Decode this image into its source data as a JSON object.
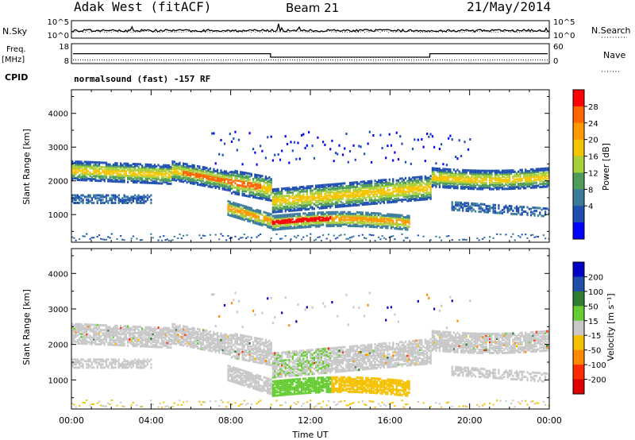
{
  "header": {
    "station": "Adak West (fitACF)",
    "beam": "Beam 21",
    "date": "21/May/2014"
  },
  "side_labels": {
    "nsky": "N.Sky",
    "freq_top": "Freq.",
    "freq_unit": "[MHz]",
    "cpid": "CPID",
    "nsearch": "N.Search",
    "nave": "Nave"
  },
  "cpid_text": "normalsound (fast) -157 RF",
  "chart_data": [
    {
      "type": "line",
      "panel": "noise",
      "y_ticks_left": [
        "10^5",
        "10^0"
      ],
      "y_ticks_right": [
        "10^5",
        "10^0"
      ],
      "note": "N.Sky noise trace"
    },
    {
      "type": "line",
      "panel": "frequency",
      "y_ticks_left": [
        "18",
        "8"
      ],
      "y_ticks_right": [
        "60",
        "0"
      ],
      "segments": [
        {
          "x_start": 0.0,
          "x_end": 10.0,
          "freq_mhz": 13.2
        },
        {
          "x_start": 10.0,
          "x_end": 18.0,
          "freq_mhz": 10.8
        },
        {
          "x_start": 18.0,
          "x_end": 24.0,
          "freq_mhz": 13.2
        }
      ],
      "nave_level": 0.15
    },
    {
      "type": "heatmap",
      "panel": "power",
      "ylabel": "Slant Range [km]",
      "y_ticks": [
        "4000",
        "3000",
        "2000",
        "1000"
      ],
      "y_tick_values": [
        4000,
        3000,
        2000,
        1000
      ],
      "ylim": [
        180,
        4700
      ],
      "xlim": [
        0,
        24
      ],
      "colorbar_label": "Power [dB]",
      "colorbar_ticks": [
        "28",
        "24",
        "20",
        "16",
        "12",
        "8",
        "4"
      ],
      "colorbar_values": [
        28,
        24,
        20,
        16,
        12,
        8,
        4
      ],
      "colorbar_colors": [
        "#ff0000",
        "#ff6600",
        "#ff9900",
        "#f5c400",
        "#a9cf3a",
        "#4f9c5a",
        "#3a7a9a",
        "#1e4fb0",
        "#0000ff"
      ]
    },
    {
      "type": "heatmap",
      "panel": "velocity",
      "ylabel": "Slant Range [km]",
      "y_ticks": [
        "4000",
        "3000",
        "2000",
        "1000"
      ],
      "y_tick_values": [
        4000,
        3000,
        2000,
        1000
      ],
      "ylim": [
        180,
        4700
      ],
      "xlim": [
        0,
        24
      ],
      "colorbar_label": "Velocity [m s⁻¹]",
      "colorbar_ticks": [
        "200",
        "100",
        "50",
        "15",
        "-15",
        "-50",
        "-100",
        "-200"
      ],
      "colorbar_values": [
        200,
        100,
        50,
        15,
        -15,
        -50,
        -100,
        -200
      ],
      "colorbar_colors": [
        "#0000c8",
        "#1f4fa8",
        "#2e7d32",
        "#66cc33",
        "#c8c8c8",
        "#f5c000",
        "#ff8800",
        "#ff2a00",
        "#e00000"
      ]
    }
  ],
  "x_axis": {
    "label": "Time UT",
    "ticks": [
      "00:00",
      "04:00",
      "08:00",
      "12:00",
      "16:00",
      "20:00",
      "00:00"
    ],
    "tick_values": [
      0,
      4,
      8,
      12,
      16,
      20,
      24
    ]
  }
}
